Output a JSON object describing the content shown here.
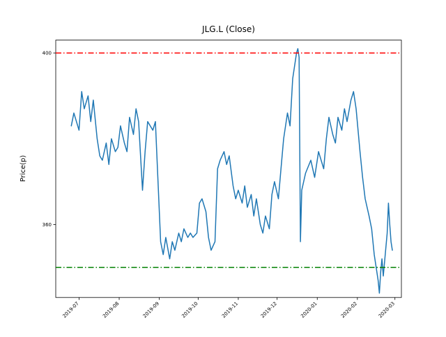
{
  "figure": {
    "background": "#ffffff"
  },
  "chart_data": {
    "type": "line",
    "title": "JLG.L (Close)",
    "xlabel": "",
    "ylabel": "Price(p)",
    "grid": false,
    "legend": "none",
    "xlim": [
      "2019-06-13",
      "2020-03-06"
    ],
    "ylim": [
      343,
      403
    ],
    "y_ticks": [
      360,
      400
    ],
    "x_ticks": [
      {
        "value": "2019-07-01",
        "label": "2019-07"
      },
      {
        "value": "2019-08-01",
        "label": "2019-08"
      },
      {
        "value": "2019-09-01",
        "label": "2019-09"
      },
      {
        "value": "2019-10-01",
        "label": "2019-10"
      },
      {
        "value": "2019-11-01",
        "label": "2019-11"
      },
      {
        "value": "2019-12-01",
        "label": "2019-12"
      },
      {
        "value": "2020-01-01",
        "label": "2020-01"
      },
      {
        "value": "2020-02-01",
        "label": "2020-02"
      },
      {
        "value": "2020-03-01",
        "label": "2020-03"
      }
    ],
    "ref_lines": [
      {
        "name": "upper-threshold",
        "value": 400,
        "color": "#ff0000",
        "style": "dashdot"
      },
      {
        "name": "lower-threshold",
        "value": 350,
        "color": "#008000",
        "style": "dashdot"
      }
    ],
    "series": [
      {
        "name": "Close",
        "color": "#1f77b4",
        "x": [
          "2019-06-25",
          "2019-06-27",
          "2019-07-01",
          "2019-07-03",
          "2019-07-05",
          "2019-07-08",
          "2019-07-10",
          "2019-07-12",
          "2019-07-15",
          "2019-07-17",
          "2019-07-19",
          "2019-07-22",
          "2019-07-24",
          "2019-07-26",
          "2019-07-29",
          "2019-07-31",
          "2019-08-02",
          "2019-08-05",
          "2019-08-07",
          "2019-08-09",
          "2019-08-12",
          "2019-08-14",
          "2019-08-16",
          "2019-08-19",
          "2019-08-21",
          "2019-08-23",
          "2019-08-27",
          "2019-08-29",
          "2019-09-02",
          "2019-09-04",
          "2019-09-06",
          "2019-09-09",
          "2019-09-11",
          "2019-09-13",
          "2019-09-16",
          "2019-09-18",
          "2019-09-20",
          "2019-09-23",
          "2019-09-25",
          "2019-09-27",
          "2019-09-30",
          "2019-10-02",
          "2019-10-04",
          "2019-10-07",
          "2019-10-09",
          "2019-10-11",
          "2019-10-14",
          "2019-10-16",
          "2019-10-18",
          "2019-10-21",
          "2019-10-23",
          "2019-10-25",
          "2019-10-28",
          "2019-10-30",
          "2019-11-01",
          "2019-11-04",
          "2019-11-06",
          "2019-11-08",
          "2019-11-11",
          "2019-11-13",
          "2019-11-15",
          "2019-11-18",
          "2019-11-20",
          "2019-11-22",
          "2019-11-25",
          "2019-11-27",
          "2019-11-29",
          "2019-12-02",
          "2019-12-04",
          "2019-12-06",
          "2019-12-09",
          "2019-12-11",
          "2019-12-13",
          "2019-12-16",
          "2019-12-17",
          "2019-12-18",
          "2019-12-19",
          "2019-12-20",
          "2019-12-23",
          "2019-12-27",
          "2019-12-30",
          "2020-01-02",
          "2020-01-06",
          "2020-01-08",
          "2020-01-10",
          "2020-01-13",
          "2020-01-15",
          "2020-01-17",
          "2020-01-20",
          "2020-01-22",
          "2020-01-24",
          "2020-01-27",
          "2020-01-29",
          "2020-01-31",
          "2020-02-03",
          "2020-02-05",
          "2020-02-07",
          "2020-02-10",
          "2020-02-12",
          "2020-02-14",
          "2020-02-17",
          "2020-02-18",
          "2020-02-19",
          "2020-02-20",
          "2020-02-21",
          "2020-02-24",
          "2020-02-25",
          "2020-02-26",
          "2020-02-27",
          "2020-02-28"
        ],
        "values": [
          383,
          386,
          382,
          391,
          387,
          390,
          384,
          389,
          380,
          376,
          375,
          379,
          374,
          380,
          377,
          378,
          383,
          379,
          377,
          385,
          381,
          387,
          384,
          368,
          377,
          384,
          382,
          384,
          356,
          353,
          357,
          352,
          356,
          354,
          358,
          356,
          359,
          357,
          358,
          357,
          358,
          365,
          366,
          363,
          357,
          354,
          356,
          373,
          375,
          377,
          374,
          376,
          369,
          366,
          368,
          365,
          369,
          364,
          367,
          362,
          366,
          360,
          358,
          362,
          359,
          367,
          370,
          366,
          373,
          380,
          386,
          383,
          394,
          400,
          401,
          399,
          356,
          368,
          372,
          375,
          371,
          377,
          373,
          380,
          385,
          381,
          379,
          385,
          382,
          387,
          384,
          389,
          391,
          387,
          377,
          371,
          366,
          362,
          359,
          353,
          347,
          344,
          349,
          352,
          348,
          358,
          365,
          360,
          356,
          354
        ]
      }
    ]
  }
}
